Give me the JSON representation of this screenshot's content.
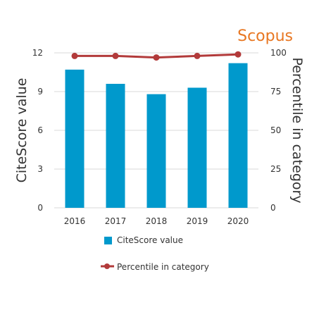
{
  "brand": {
    "label": "Scopus",
    "color": "#e87722"
  },
  "chart_data": {
    "type": "bar",
    "categories": [
      "2016",
      "2017",
      "2018",
      "2019",
      "2020"
    ],
    "series": [
      {
        "name": "CiteScore value",
        "type": "bar",
        "axis": "left",
        "color": "#0099cc",
        "values": [
          10.7,
          9.6,
          8.8,
          9.3,
          11.2
        ]
      },
      {
        "name": "Percentile in category",
        "type": "line",
        "axis": "right",
        "color": "#b23a3a",
        "values": [
          98,
          98,
          97,
          98,
          99
        ]
      }
    ],
    "ylabel": "CiteScore value",
    "y2label": "Percentile in category",
    "ylim": [
      0,
      12
    ],
    "y2lim": [
      0,
      100
    ],
    "yticks": [
      "0",
      "3",
      "6",
      "9",
      "12"
    ],
    "y2ticks": [
      "0",
      "25",
      "50",
      "75",
      "100"
    ],
    "grid": true,
    "legend": "bottom"
  }
}
